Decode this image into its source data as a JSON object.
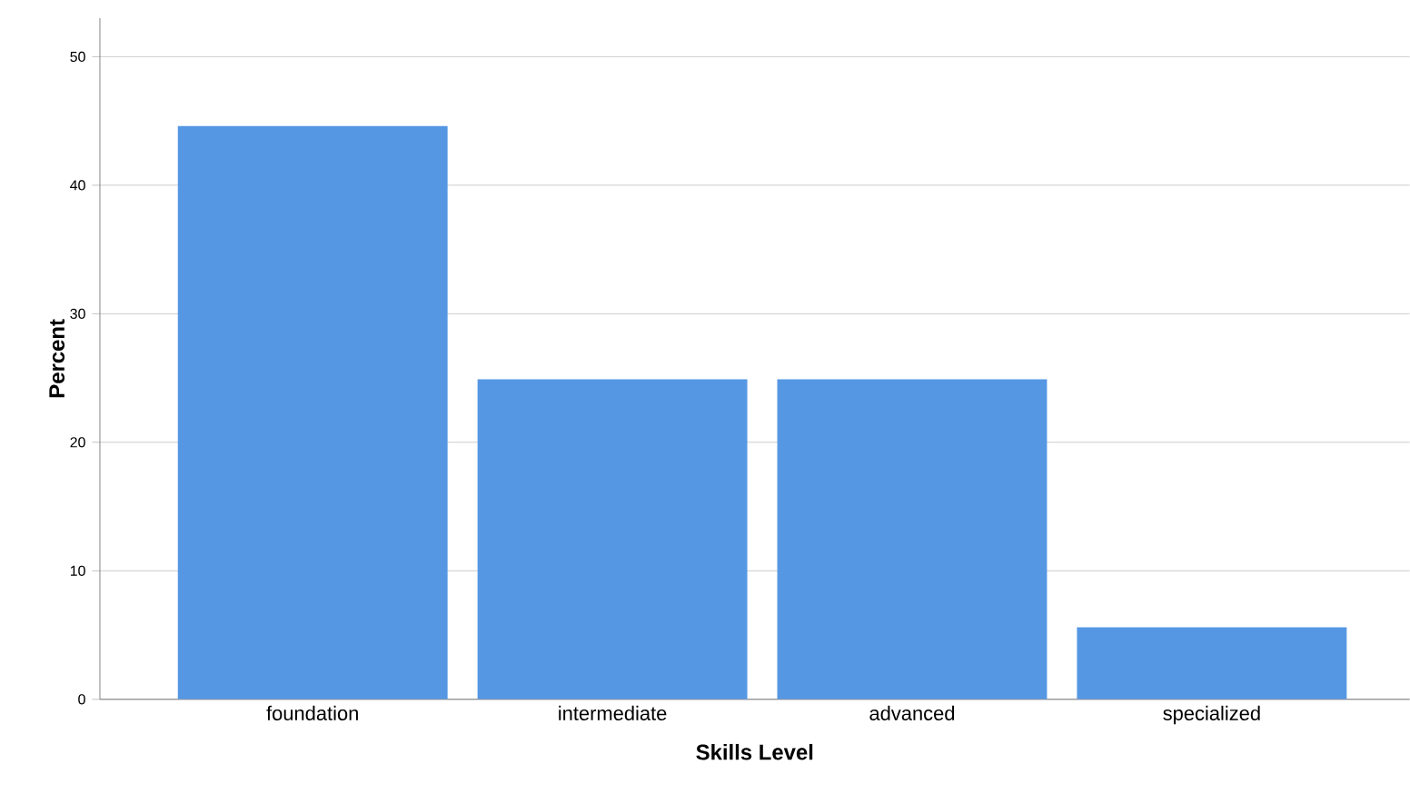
{
  "chart_data": {
    "type": "bar",
    "xlabel": "Skills Level",
    "ylabel": "Percent",
    "categories": [
      "foundation",
      "intermediate",
      "advanced",
      "specialized"
    ],
    "values": [
      44.6,
      24.9,
      24.9,
      5.6
    ],
    "color": "#5597e3",
    "ylim": [
      0,
      53
    ],
    "yticks": [
      0,
      10,
      20,
      30,
      40,
      50
    ],
    "grid": "y"
  }
}
